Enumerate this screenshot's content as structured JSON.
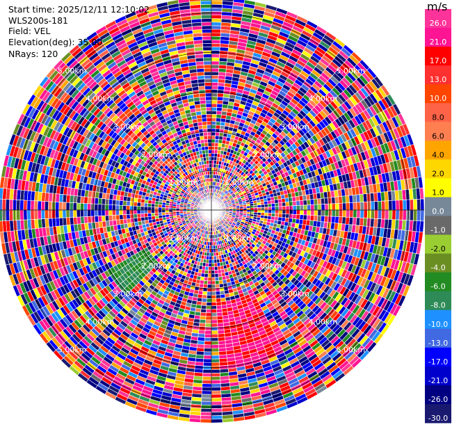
{
  "info": {
    "start_time": "Start time: 2025/12/11 12:10:02",
    "instrument": "WLS200s-181",
    "field": "Field: VEL",
    "elevation": "Elevation(deg): 35.00",
    "nrays": "NRays: 120"
  },
  "chart_data": {
    "type": "heatmap",
    "projection": "polar-ppi",
    "field": "VEL",
    "units": "m/s",
    "n_rays": 120,
    "range_rings_km": [
      1.0,
      2.0,
      3.0,
      4.0,
      5.0
    ],
    "ring_labels": [
      "1.00km",
      "2.00km",
      "3.00km",
      "4.00km",
      "5.00km"
    ],
    "max_range_km": 5.4,
    "colorbar": {
      "unit_label": "m/s",
      "bounds": [
        -30,
        -26,
        -21,
        -17,
        -13,
        -10,
        -8,
        -6,
        -4,
        -2,
        -1,
        0,
        1,
        2,
        4,
        6,
        8,
        10,
        13,
        17,
        21,
        26,
        30
      ],
      "colors": [
        "#191970",
        "#000080",
        "#0000cd",
        "#0000ff",
        "#4169e1",
        "#1e90ff",
        "#2e8b57",
        "#228b22",
        "#6b8e23",
        "#9acd32",
        "#696969",
        "#778899",
        "#ffff00",
        "#ffd700",
        "#ffa500",
        "#ff7f50",
        "#ff6347",
        "#ff4500",
        "#ff3030",
        "#ff0000",
        "#ff1493",
        "#ff3399"
      ],
      "tick_labels": [
        "26.0",
        "21.0",
        "17.0",
        "13.0",
        "10.0",
        "8.0",
        "6.0",
        "4.0",
        "2.0",
        "1.0",
        "0.0",
        "-1.0",
        "-2.0",
        "-4.0",
        "-6.0",
        "-8.0",
        "-10.0",
        "-13.0",
        "-17.0",
        "-21.0",
        "-26.0",
        "-30.0"
      ]
    }
  }
}
